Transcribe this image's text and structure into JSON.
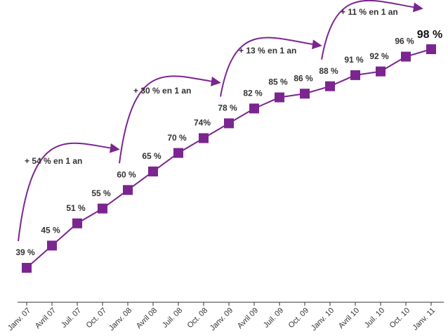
{
  "chart_data": {
    "type": "line",
    "categories": [
      "Janv. 07",
      "Avril 07",
      "Juil. 07",
      "Oct. 07",
      "Janv. 08",
      "Avril 08",
      "Juil. 08",
      "Oct. 08",
      "Janv. 09",
      "Avril 09",
      "Juil. 09",
      "Oct. 09",
      "Janv. 10",
      "Avril 10",
      "Juil. 10",
      "Oct. 10",
      "Janv. 11"
    ],
    "series": [
      {
        "color": "#7b2590",
        "values": [
          39,
          45,
          51,
          55,
          60,
          65,
          70,
          74,
          78,
          82,
          85,
          86,
          88,
          91,
          92,
          96,
          98
        ],
        "value_labels": [
          "39 %",
          "45 %",
          "51 %",
          "55 %",
          "60 %",
          "65 %",
          "70 %",
          "74%",
          "78 %",
          "82 %",
          "85 %",
          "86 %",
          "88 %",
          "91 %",
          "92 %",
          "96 %",
          "98 %"
        ]
      }
    ],
    "annotations": [
      "+ 54 % en 1 an",
      "+ 30 % en 1 an",
      "+ 13 % en 1 an",
      "+ 11 % en 1 an"
    ]
  }
}
